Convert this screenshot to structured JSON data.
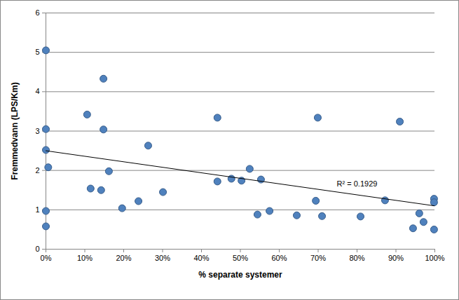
{
  "chart_data": {
    "type": "scatter",
    "x_label": "% separate systemer",
    "y_label": "Fremmedvann (LPS/Km)",
    "series": [
      {
        "type": "scatter",
        "color": "#4f81bd",
        "marker": "circle",
        "x": [
          0,
          0,
          0,
          0,
          0,
          0.6,
          10.6,
          11.5,
          14.2,
          14.8,
          14.8,
          16.2,
          19.6,
          23.8,
          26.3,
          30.1,
          44.1,
          44.1,
          47.7,
          50.3,
          52.4,
          54.4,
          55.3,
          57.5,
          64.5,
          69.4,
          69.9,
          71,
          80.9,
          87.2,
          91,
          94.4,
          96,
          97.1,
          99.8,
          99.8,
          99.8
        ],
        "values": [
          5.05,
          3.05,
          2.52,
          0.97,
          0.58,
          2.08,
          3.42,
          1.54,
          1.5,
          4.33,
          3.04,
          1.98,
          1.04,
          1.22,
          2.63,
          1.45,
          3.34,
          1.72,
          1.79,
          1.74,
          2.04,
          0.88,
          1.77,
          0.97,
          0.86,
          1.23,
          3.34,
          0.84,
          0.83,
          1.24,
          3.24,
          0.53,
          0.91,
          0.69,
          1.28,
          1.19,
          0.5
        ]
      },
      {
        "type": "line",
        "color": "#000000",
        "line_style": "solid",
        "x": [
          0,
          100
        ],
        "values": [
          2.5,
          1.1
        ]
      }
    ],
    "annotations": [
      {
        "text": "R² = 0.1929"
      }
    ],
    "xlim": [
      0,
      100
    ],
    "xticks": [
      {
        "value": 0,
        "label": "0%"
      },
      {
        "value": 10,
        "label": "10%"
      },
      {
        "value": 20,
        "label": "20%"
      },
      {
        "value": 30,
        "label": "30%"
      },
      {
        "value": 40,
        "label": "40%"
      },
      {
        "value": 50,
        "label": "50%"
      },
      {
        "value": 60,
        "label": "60%"
      },
      {
        "value": 70,
        "label": "70%"
      },
      {
        "value": 80,
        "label": "80%"
      },
      {
        "value": 90,
        "label": "90%"
      },
      {
        "value": 100,
        "label": "100%"
      }
    ],
    "ylim": [
      0,
      6
    ],
    "yticks": [
      0,
      1,
      2,
      3,
      4,
      5,
      6
    ],
    "grid": true
  }
}
